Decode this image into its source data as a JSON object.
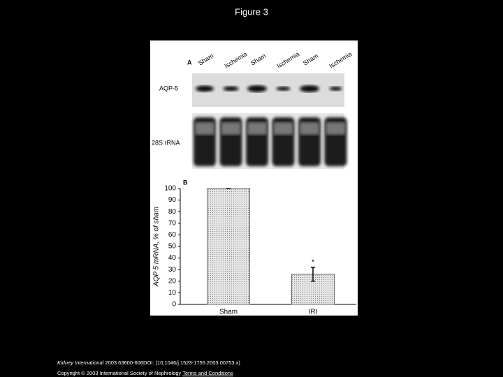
{
  "title": "Figure 3",
  "panel_a": {
    "label": "A",
    "lanes": [
      "Sham",
      "Ischemia",
      "Sham",
      "Ischemia",
      "Sham",
      "Ischemia"
    ],
    "rows": [
      "AQP-5",
      "28S rRNA"
    ]
  },
  "chart_data": {
    "type": "bar",
    "panel_label": "B",
    "y_label": "AQP 5 mRNA, % of sham",
    "categories": [
      "Sham",
      "IRI"
    ],
    "values": [
      100,
      26
    ],
    "errors": [
      0,
      6
    ],
    "annotation": "*",
    "color": "#d9d9d9",
    "ylim": [
      0,
      100
    ],
    "yticks": [
      0,
      10,
      20,
      30,
      40,
      50,
      60,
      70,
      80,
      90,
      100
    ]
  },
  "footer": {
    "journal": "Kidney International",
    "citation": "2003 63600-606DOI: (10.1046/j.1523-1755.2003.00753.x)",
    "copyright": "Copyright © 2003 International Society of Nephrology",
    "link": "Terms and Conditions"
  }
}
